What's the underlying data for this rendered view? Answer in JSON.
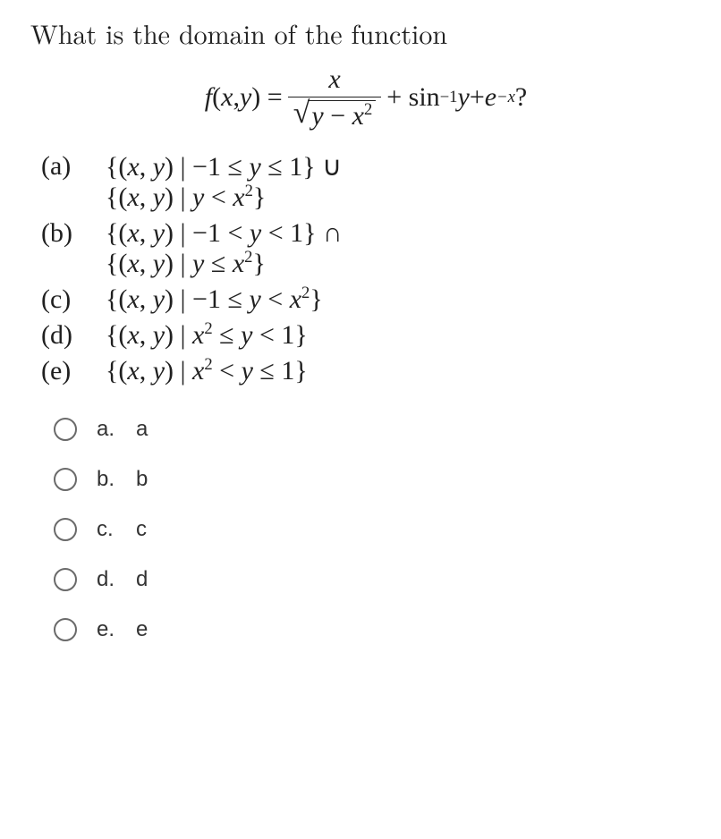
{
  "question_prefix": "What is the domain of the function",
  "formula": {
    "lhs_f": "f",
    "lhs_open": "(",
    "lhs_x": "x",
    "lhs_comma": ", ",
    "lhs_y": "y",
    "lhs_close": ") = ",
    "frac_num": "x",
    "sqrt_y": "y",
    "sqrt_minus": " − ",
    "sqrt_x": "x",
    "sqrt_exp": "2",
    "plus1": " + sin",
    "sin_exp": "−1",
    "sin_y": " y",
    "plus2": " + ",
    "e": "e",
    "e_exp": "−x",
    "qmark": " ?"
  },
  "math_options": [
    {
      "label": "(a)",
      "lines": [
        "{(x, y) | −1 ≤ y ≤ 1} ∪",
        "{(x, y) | y < x²}"
      ]
    },
    {
      "label": "(b)",
      "lines": [
        "{(x, y) | −1 < y < 1} ∩",
        "{(x, y) | y ≤ x²}"
      ]
    },
    {
      "label": "(c)",
      "lines": [
        "{(x, y) | −1 ≤ y < x²}"
      ]
    },
    {
      "label": "(d)",
      "lines": [
        "{(x, y) | x² ≤ y < 1}"
      ]
    },
    {
      "label": "(e)",
      "lines": [
        "{(x, y) | x² < y ≤ 1}"
      ]
    }
  ],
  "answer_choices": [
    {
      "letter": "a.",
      "text": "a"
    },
    {
      "letter": "b.",
      "text": "b"
    },
    {
      "letter": "c.",
      "text": "c"
    },
    {
      "letter": "d.",
      "text": "d"
    },
    {
      "letter": "e.",
      "text": "e"
    }
  ],
  "colors": {
    "text": "#202020",
    "radio_border": "#6a6a6a",
    "background": "#ffffff"
  },
  "fonts": {
    "math_family": "Times New Roman, serif",
    "math_size_pt": 22,
    "ui_family": "Helvetica, Arial, sans-serif",
    "ui_size_pt": 18
  }
}
